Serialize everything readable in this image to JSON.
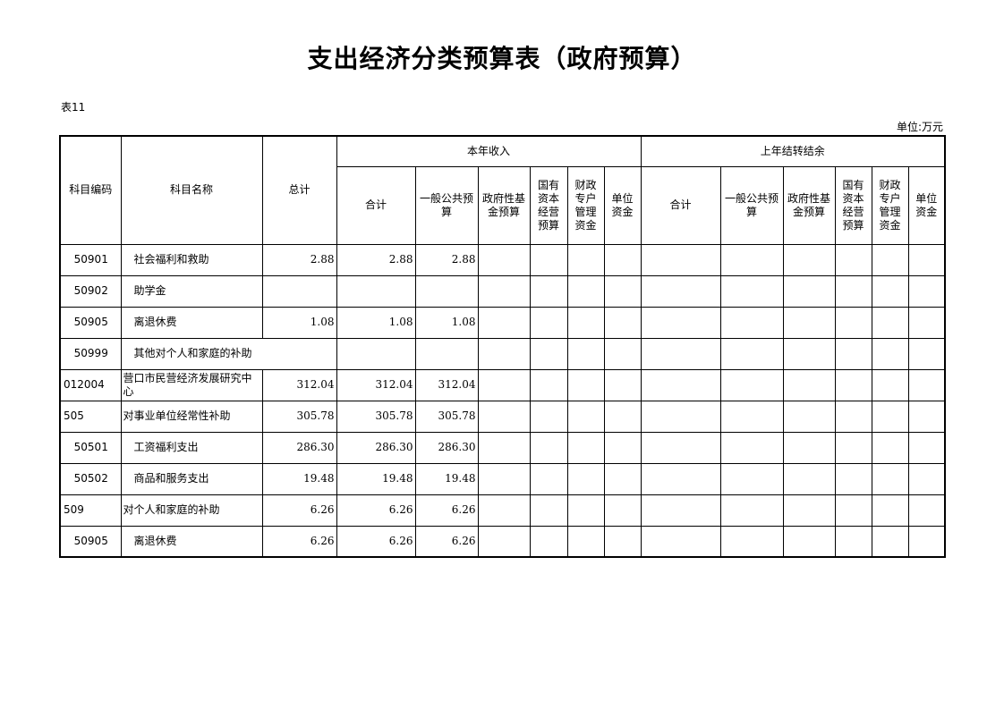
{
  "title": "支出经济分类预算表（政府预算）",
  "table_no": "表11",
  "unit": "单位:万元",
  "headers": {
    "code": "科目编码",
    "name": "科目名称",
    "total": "总计",
    "current_year": "本年收入",
    "carryover": "上年结转结余",
    "sub": [
      "合计",
      "一般公共预算",
      "政府性基金预算",
      "国有资本经营预算",
      "财政专户管理资金",
      "单位资金"
    ]
  },
  "rows": [
    {
      "code": "50901",
      "name": "社会福利和救助",
      "level": "sub",
      "values": [
        "2.88",
        "2.88",
        "2.88"
      ]
    },
    {
      "code": "50902",
      "name": "助学金",
      "level": "sub",
      "values": []
    },
    {
      "code": "50905",
      "name": "离退休费",
      "level": "sub",
      "values": [
        "1.08",
        "1.08",
        "1.08"
      ]
    },
    {
      "code": "50999",
      "name": "其他对个人和家庭的补助",
      "level": "sub",
      "values": [],
      "span": true
    },
    {
      "code": "012004",
      "name": "营口市民营经济发展研究中心",
      "level": "top",
      "values": [
        "312.04",
        "312.04",
        "312.04"
      ]
    },
    {
      "code": "505",
      "name": "对事业单位经常性补助",
      "level": "top",
      "values": [
        "305.78",
        "305.78",
        "305.78"
      ]
    },
    {
      "code": "50501",
      "name": "工资福利支出",
      "level": "sub",
      "values": [
        "286.30",
        "286.30",
        "286.30"
      ]
    },
    {
      "code": "50502",
      "name": "商品和服务支出",
      "level": "sub",
      "values": [
        "19.48",
        "19.48",
        "19.48"
      ]
    },
    {
      "code": "509",
      "name": "对个人和家庭的补助",
      "level": "top",
      "values": [
        "6.26",
        "6.26",
        "6.26"
      ]
    },
    {
      "code": "50905",
      "name": "离退休费",
      "level": "sub",
      "values": [
        "6.26",
        "6.26",
        "6.26"
      ]
    }
  ]
}
